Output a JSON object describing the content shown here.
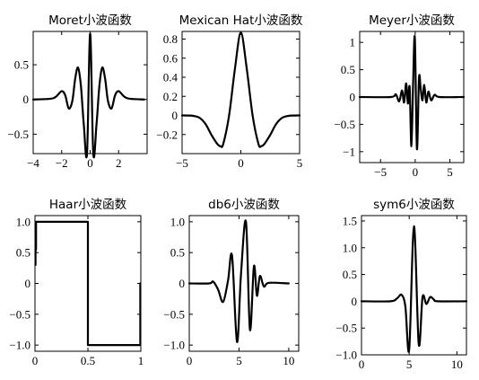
{
  "chart_data": [
    {
      "type": "line",
      "title": "Moret小波函数",
      "xlim": [
        -4,
        4
      ],
      "ylim": [
        -0.78,
        0.98
      ],
      "xticks": [
        -4,
        -2,
        0,
        2
      ],
      "xtick_labels": [
        "−4",
        "−2",
        "0",
        "2"
      ],
      "yticks": [
        -0.5,
        0,
        0.5
      ],
      "ytick_labels": [
        "−0.5",
        "0",
        "0.5"
      ],
      "series": [
        {
          "x": [
            -4.0,
            -2.8,
            -2.4,
            -2.0,
            -1.75,
            -1.5,
            -1.25,
            -1.05,
            -0.85,
            -0.65,
            -0.45,
            -0.22,
            0.0,
            0.22,
            0.45,
            0.65,
            0.85,
            1.05,
            1.25,
            1.5,
            1.75,
            2.0,
            2.4,
            2.8,
            3.8
          ],
          "y": [
            0,
            0.01,
            0.04,
            0.12,
            0.06,
            -0.13,
            -0.02,
            0.3,
            0.46,
            0.2,
            -0.35,
            -0.78,
            0.95,
            -0.78,
            -0.35,
            0.2,
            0.46,
            0.3,
            -0.02,
            -0.13,
            0.06,
            0.12,
            0.04,
            0.01,
            0
          ]
        }
      ]
    },
    {
      "type": "line",
      "title": "Mexican Hat小波函数",
      "xlim": [
        -5,
        5
      ],
      "ylim": [
        -0.4,
        0.88
      ],
      "xticks": [
        -5,
        0,
        5
      ],
      "xtick_labels": [
        "−5",
        "0",
        "5"
      ],
      "yticks": [
        -0.2,
        0,
        0.2,
        0.4,
        0.6,
        0.8
      ],
      "ytick_labels": [
        "−0.2",
        "0",
        "0.2",
        "0.4",
        "0.6",
        "0.8"
      ],
      "series": [
        {
          "x": [
            -5.0,
            -4.5,
            -4.0,
            -3.5,
            -3.0,
            -2.5,
            -2.0,
            -1.732,
            -1.5,
            -1.0,
            -0.5,
            0.0,
            0.5,
            1.0,
            1.5,
            1.732,
            2.0,
            2.5,
            3.0,
            3.5,
            4.0,
            4.5,
            5.0
          ],
          "y": [
            -9e-05,
            -0.0009,
            -0.0058,
            -0.026,
            -0.091,
            -0.204,
            -0.299,
            -0.322,
            -0.299,
            0.0,
            0.492,
            0.867,
            0.492,
            0.0,
            -0.299,
            -0.322,
            -0.299,
            -0.204,
            -0.091,
            -0.026,
            -0.0058,
            -0.0009,
            -9e-05
          ]
        }
      ]
    },
    {
      "type": "line",
      "title": "Meyer小波函数",
      "xlim": [
        -8,
        7
      ],
      "ylim": [
        -1.2,
        1.2
      ],
      "xticks": [
        -5,
        0,
        5
      ],
      "xtick_labels": [
        "−5",
        "0",
        "5"
      ],
      "yticks": [
        -1,
        -0.5,
        0,
        0.5,
        1
      ],
      "ytick_labels": [
        "−1",
        "−0.5",
        "0",
        "0.5",
        "1"
      ],
      "series": [
        {
          "x": [
            -8.0,
            -3.5,
            -2.8,
            -2.3,
            -1.9,
            -1.6,
            -1.3,
            -1.05,
            -0.8,
            -0.55,
            -0.3,
            -0.05,
            0.25,
            0.55,
            0.8,
            1.05,
            1.3,
            1.6,
            1.9,
            2.3,
            2.8,
            3.5,
            7.0
          ],
          "y": [
            0,
            0,
            0.05,
            -0.08,
            0.12,
            -0.1,
            0.25,
            -0.12,
            0.18,
            -0.9,
            0.25,
            1.08,
            -0.95,
            0.35,
            0.14,
            -0.06,
            0.22,
            -0.1,
            0.1,
            -0.06,
            0.04,
            0,
            0
          ]
        }
      ]
    },
    {
      "type": "line",
      "title": "Haar小波函数",
      "xlim": [
        0,
        1
      ],
      "ylim": [
        -1.1,
        1.1
      ],
      "xticks": [
        0,
        0.5,
        1
      ],
      "xtick_labels": [
        "0",
        "0.5",
        "1"
      ],
      "yticks": [
        -1,
        -0.5,
        0,
        0.5,
        1
      ],
      "ytick_labels": [
        "−1.0",
        "−0.5",
        "0",
        "0.5",
        "1.0"
      ],
      "series": [
        {
          "x": [
            0.005,
            0.005,
            0.01,
            0.01,
            0.5,
            0.5,
            0.995,
            0.995
          ],
          "y": [
            0.3,
            0.55,
            0.55,
            1.0,
            1.0,
            -1.0,
            -1.0,
            0.0
          ]
        }
      ]
    },
    {
      "type": "line",
      "title": "db6小波函数",
      "xlim": [
        0,
        11
      ],
      "ylim": [
        -1.1,
        1.1
      ],
      "xticks": [
        0,
        5,
        10
      ],
      "xtick_labels": [
        "0",
        "5",
        "10"
      ],
      "yticks": [
        -1,
        -0.5,
        0,
        0.5,
        1
      ],
      "ytick_labels": [
        "−1.0",
        "−0.5",
        "0",
        "0.5",
        "1.0"
      ],
      "series": [
        {
          "x": [
            0,
            2.0,
            2.4,
            2.9,
            3.4,
            3.9,
            4.3,
            4.8,
            5.2,
            5.7,
            6.1,
            6.5,
            6.8,
            7.1,
            7.5,
            8.0,
            10.0
          ],
          "y": [
            0,
            0,
            0.03,
            -0.1,
            -0.3,
            0.05,
            0.45,
            -0.95,
            0.15,
            1.0,
            -0.75,
            0.28,
            -0.2,
            0.12,
            -0.05,
            0.01,
            0
          ]
        }
      ]
    },
    {
      "type": "line",
      "title": "sym6小波函数",
      "xlim": [
        0,
        11
      ],
      "ylim": [
        -1.0,
        1.6
      ],
      "xticks": [
        0,
        5,
        10
      ],
      "xtick_labels": [
        "0",
        "5",
        "10"
      ],
      "yticks": [
        -1,
        -0.5,
        0,
        0.5,
        1,
        1.5
      ],
      "ytick_labels": [
        "−1.0",
        "−0.5",
        "0",
        "0.5",
        "1.0",
        "1.5"
      ],
      "series": [
        {
          "x": [
            0,
            3.0,
            3.7,
            4.2,
            4.6,
            5.0,
            5.5,
            6.0,
            6.4,
            6.8,
            7.2,
            7.6,
            8.0,
            11.0
          ],
          "y": [
            0,
            0,
            0.05,
            0.12,
            -0.1,
            -0.9,
            1.4,
            -0.8,
            0.08,
            -0.05,
            0.08,
            0.03,
            0,
            0
          ]
        }
      ]
    }
  ]
}
